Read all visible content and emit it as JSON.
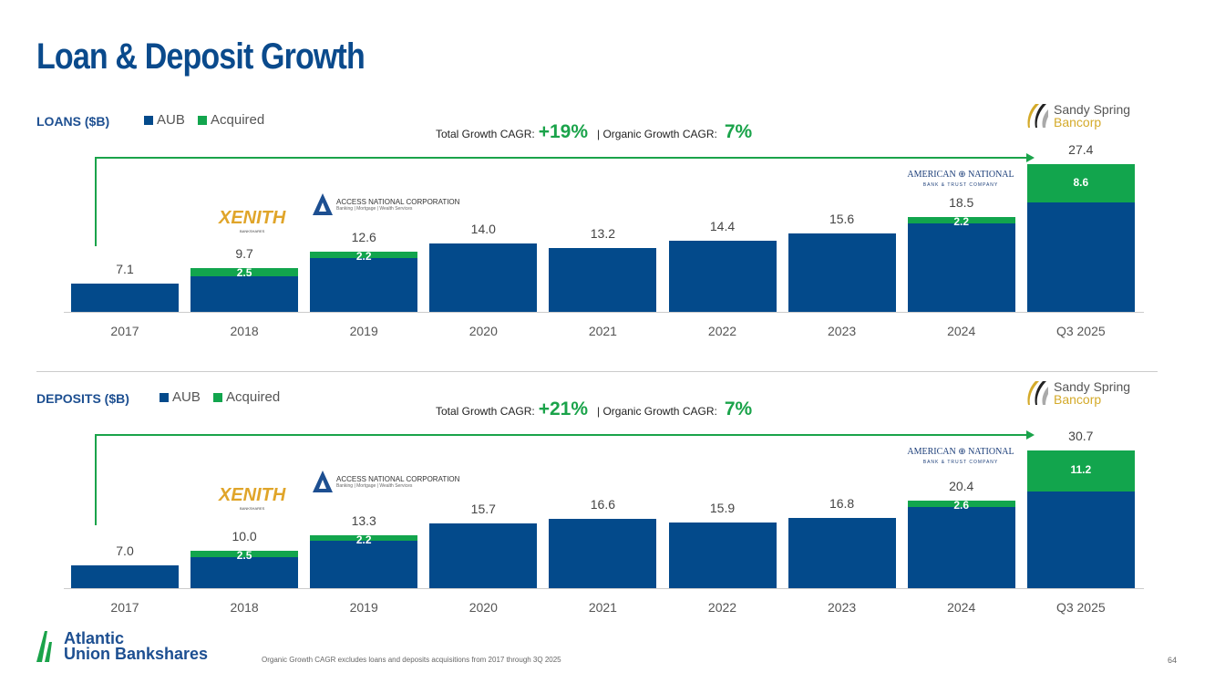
{
  "title": "Loan & Deposit Growth",
  "colors": {
    "aub": "#034a8b",
    "acquired": "#12a54d"
  },
  "legend": {
    "aub": "AUB",
    "acquired": "Acquired"
  },
  "logos": {
    "xenith": "XENITH",
    "xenith_sub": "BANKSHARES",
    "access": "ACCESS NATIONAL CORPORATION",
    "access_sub": "Banking | Mortgage | Wealth Services",
    "american": "AMERICAN ⊕ NATIONAL",
    "american_sub": "BANK & TRUST COMPANY",
    "sandy1": "Sandy Spring",
    "sandy2": "Bancorp"
  },
  "footer": {
    "company1": "Atlantic",
    "company2": "Union Bankshares",
    "note": "Organic Growth CAGR excludes loans and deposits acquisitions from 2017 through 3Q 2025",
    "page": "64"
  },
  "chart_data": [
    {
      "type": "bar",
      "title": "LOANS ($B)",
      "stacked": true,
      "cagr": {
        "total_label": "Total Growth CAGR:",
        "total": "+19%",
        "organic_label": "| Organic Growth CAGR:",
        "organic": "7%"
      },
      "categories": [
        "2017",
        "2018",
        "2019",
        "2020",
        "2021",
        "2022",
        "2023",
        "2024",
        "Q3 2025"
      ],
      "totals": [
        7.1,
        9.7,
        12.6,
        14.0,
        13.2,
        14.4,
        15.6,
        18.5,
        27.4
      ],
      "acquired": [
        0,
        2.5,
        2.2,
        0,
        0,
        0,
        0,
        2.2,
        8.6
      ],
      "acquired_labels": [
        "",
        "2.5",
        "2.2",
        "",
        "",
        "",
        "",
        "2.2",
        "8.6"
      ],
      "total_labels": [
        "7.1",
        "9.7",
        "12.6",
        "14.0",
        "13.2",
        "14.4",
        "15.6",
        "18.5",
        "27.4"
      ],
      "ylim": [
        2.3,
        28.7
      ]
    },
    {
      "type": "bar",
      "title": "DEPOSITS ($B)",
      "stacked": true,
      "cagr": {
        "total_label": "Total Growth CAGR:",
        "total": "+21%",
        "organic_label": "| Organic Growth CAGR:",
        "organic": "7%"
      },
      "categories": [
        "2017",
        "2018",
        "2019",
        "2020",
        "2021",
        "2022",
        "2023",
        "2024",
        "Q3 2025"
      ],
      "totals": [
        7.0,
        10.0,
        13.3,
        15.7,
        16.6,
        15.9,
        16.8,
        20.4,
        30.7
      ],
      "acquired": [
        0,
        2.5,
        2.2,
        0,
        0,
        0,
        0,
        2.6,
        11.2
      ],
      "acquired_labels": [
        "",
        "2.5",
        "2.2",
        "",
        "",
        "",
        "",
        "2.6",
        "11.2"
      ],
      "total_labels": [
        "7.0",
        "10.0",
        "13.3",
        "15.7",
        "16.6",
        "15.9",
        "16.8",
        "20.4",
        "30.7"
      ],
      "ylim": [
        2.3,
        32.4
      ]
    }
  ]
}
